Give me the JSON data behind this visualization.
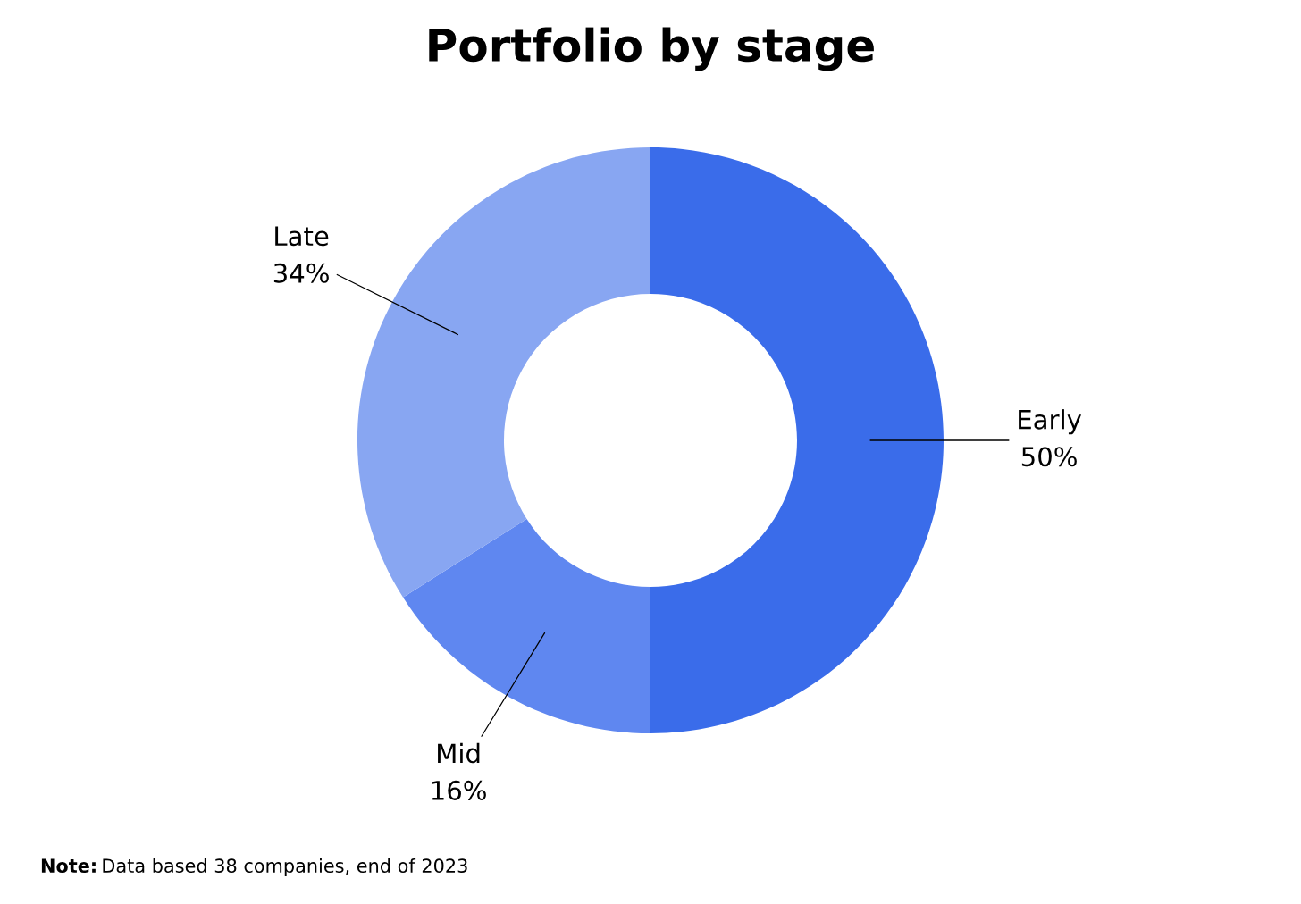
{
  "chart_data": {
    "type": "donut",
    "title": "Portfolio by stage",
    "categories": [
      "Early",
      "Mid",
      "Late"
    ],
    "values": [
      50,
      16,
      34
    ],
    "value_labels": [
      "50%",
      "16%",
      "34%"
    ],
    "colors": [
      "#3a6cea",
      "#5f87f0",
      "#88a6f2"
    ],
    "annotations": [
      "Note: Data based 38 companies, end of 2023"
    ]
  }
}
